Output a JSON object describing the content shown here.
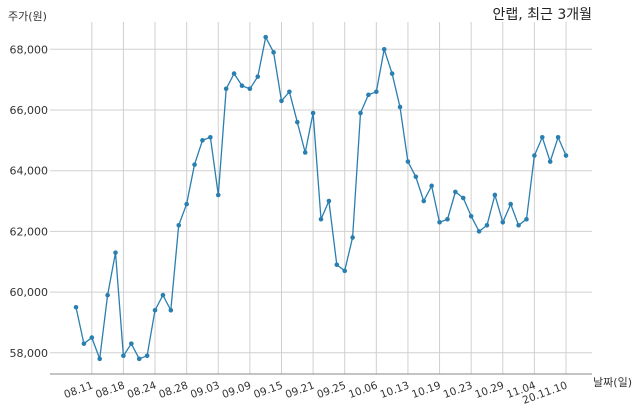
{
  "chart_data": {
    "type": "line",
    "title": "안랩, 최근 3개월",
    "ylabel": "주가(원)",
    "xlabel": "날짜(일)",
    "ylim": [
      57300,
      68900
    ],
    "yticks": [
      58000,
      60000,
      62000,
      64000,
      66000,
      68000
    ],
    "ytick_labels": [
      "58,000",
      "60,000",
      "62,000",
      "64,000",
      "66,000",
      "68,000"
    ],
    "xtick_labels": [
      "08.11",
      "08.18",
      "08.24",
      "08.28",
      "09.03",
      "09.09",
      "09.15",
      "09.21",
      "09.25",
      "10.06",
      "10.13",
      "10.19",
      "10.23",
      "10.29",
      "11.04",
      "20.11.10"
    ],
    "xtick_positions": [
      2,
      6,
      10,
      14,
      18,
      22,
      26,
      30,
      34,
      38,
      42,
      46,
      50,
      54,
      58,
      62
    ],
    "grid": true,
    "color": "#2a7fb0",
    "series": [
      {
        "values": [
          59500,
          58300,
          58500,
          57800,
          59900,
          61300,
          57900,
          58300,
          57800,
          57900,
          59400,
          59900,
          59400,
          62200,
          62900,
          64200,
          65000,
          65100,
          63200,
          66700,
          67200,
          66800,
          66700,
          67100,
          68400,
          67900,
          66300,
          66600,
          65600,
          64600,
          65900,
          62400,
          63000,
          60900,
          60700,
          61800,
          65900,
          66500,
          66600,
          68000,
          67200,
          66100,
          64300,
          63800,
          63000,
          63500,
          62300,
          62400,
          63300,
          63100,
          62500,
          62000,
          62200,
          63200,
          62300,
          62900,
          62200,
          62400,
          64500,
          65100,
          64300,
          65100,
          64500
        ]
      }
    ]
  }
}
